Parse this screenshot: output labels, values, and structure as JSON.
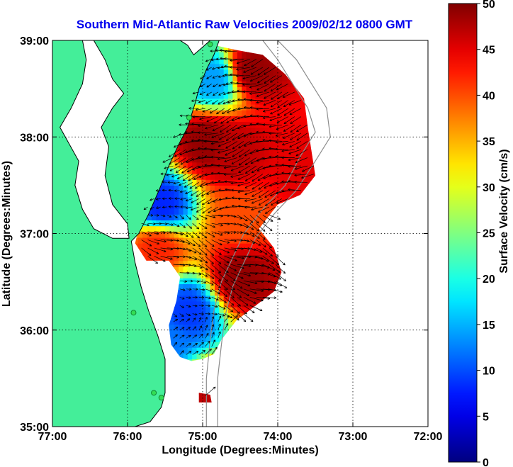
{
  "chart_data": {
    "type": "heatmap",
    "title": "Southern Mid-Atlantic Raw Velocities 2009/02/12 0800 GMT",
    "xlabel": "Longitude (Degrees:Minutes)",
    "ylabel": "Latitude (Degrees:Minutes)",
    "xlim": [
      -77,
      -72
    ],
    "ylim": [
      35,
      39
    ],
    "x_ticks": [
      {
        "value": -77,
        "label": "77:00"
      },
      {
        "value": -76,
        "label": "76:00"
      },
      {
        "value": -75,
        "label": "75:00"
      },
      {
        "value": -74,
        "label": "74:00"
      },
      {
        "value": -73,
        "label": "73:00"
      },
      {
        "value": -72,
        "label": "72:00"
      }
    ],
    "y_ticks": [
      {
        "value": 35,
        "label": "35:00"
      },
      {
        "value": 36,
        "label": "36:00"
      },
      {
        "value": 37,
        "label": "37:00"
      },
      {
        "value": 38,
        "label": "38:00"
      },
      {
        "value": 39,
        "label": "39:00"
      }
    ],
    "grid": true,
    "colorbar": {
      "label": "Surface Velocity (cm/s)",
      "range": [
        0,
        50
      ],
      "ticks": [
        {
          "value": 0,
          "label": "0"
        },
        {
          "value": 5,
          "label": "5"
        },
        {
          "value": 10,
          "label": "10"
        },
        {
          "value": 15,
          "label": "15"
        },
        {
          "value": 20,
          "label": "20"
        },
        {
          "value": 25,
          "label": "25"
        },
        {
          "value": 30,
          "label": "30"
        },
        {
          "value": 35,
          "label": "35"
        },
        {
          "value": 40,
          "label": "40"
        },
        {
          "value": 45,
          "label": "45"
        },
        {
          "value": 50,
          "label": "50"
        }
      ],
      "colormap": "jet"
    },
    "velocity_maxima": [
      {
        "lon": -74.35,
        "lat": 38.7,
        "speed": 49
      },
      {
        "lon": -74.95,
        "lat": 37.95,
        "speed": 49
      },
      {
        "lon": -74.6,
        "lat": 37.85,
        "speed": 47
      },
      {
        "lon": -73.65,
        "lat": 37.65,
        "speed": 45
      },
      {
        "lon": -74.5,
        "lat": 36.55,
        "speed": 49
      },
      {
        "lon": -75.6,
        "lat": 36.85,
        "speed": 42
      },
      {
        "lon": -74.5,
        "lat": 37.15,
        "speed": 40
      },
      {
        "lon": -74.95,
        "lat": 35.3,
        "speed": 47
      }
    ],
    "velocity_minima": [
      {
        "lon": -75.55,
        "lat": 37.3,
        "speed": 8
      },
      {
        "lon": -75.2,
        "lat": 36.2,
        "speed": 9
      },
      {
        "lon": -75.5,
        "lat": 35.9,
        "speed": 12
      },
      {
        "lon": -74.85,
        "lat": 38.6,
        "speed": 14
      }
    ],
    "colors": {
      "land": "#44ee99",
      "coastline": "#000000",
      "bathymetry": "#8c8c8c",
      "arrows": "#000000",
      "title": "#0000ee"
    }
  }
}
